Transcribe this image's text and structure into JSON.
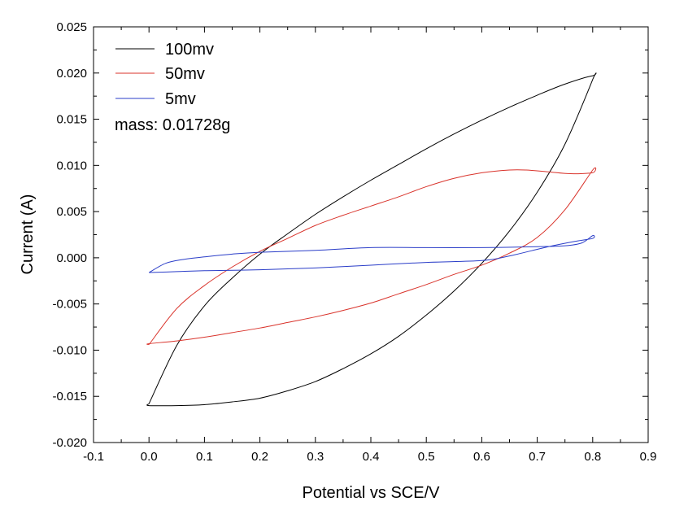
{
  "chart_data": {
    "type": "line",
    "xlabel": "Potential vs SCE/V",
    "ylabel": "Current (A)",
    "xlim": [
      -0.1,
      0.9
    ],
    "ylim": [
      -0.02,
      0.025
    ],
    "x_ticks": [
      -0.1,
      0.0,
      0.1,
      0.2,
      0.3,
      0.4,
      0.5,
      0.6,
      0.7,
      0.8,
      0.9
    ],
    "x_tick_labels": [
      "-0.1",
      "0.0",
      "0.1",
      "0.2",
      "0.3",
      "0.4",
      "0.5",
      "0.6",
      "0.7",
      "0.8",
      "0.9"
    ],
    "y_ticks": [
      -0.02,
      -0.015,
      -0.01,
      -0.005,
      0.0,
      0.005,
      0.01,
      0.015,
      0.02,
      0.025
    ],
    "y_tick_labels": [
      "-0.020",
      "-0.015",
      "-0.010",
      "-0.005",
      "0.000",
      "0.005",
      "0.010",
      "0.015",
      "0.020",
      "0.025"
    ],
    "grid": false,
    "legend_position": "top-left",
    "annotation": "mass: 0.01728g",
    "series": [
      {
        "name": "100mv",
        "color": "#000000",
        "x": [
          0.0,
          0.05,
          0.1,
          0.15,
          0.2,
          0.25,
          0.3,
          0.35,
          0.4,
          0.45,
          0.5,
          0.55,
          0.6,
          0.65,
          0.7,
          0.75,
          0.8,
          0.8,
          0.75,
          0.7,
          0.65,
          0.6,
          0.55,
          0.5,
          0.45,
          0.4,
          0.35,
          0.3,
          0.25,
          0.2,
          0.15,
          0.1,
          0.05,
          0.0,
          0.0
        ],
        "y": [
          -0.0158,
          -0.0095,
          -0.0052,
          -0.0022,
          0.0004,
          0.0026,
          0.0047,
          0.0066,
          0.0084,
          0.0101,
          0.0118,
          0.0134,
          0.0149,
          0.0163,
          0.0176,
          0.0188,
          0.0197,
          0.0193,
          0.0123,
          0.0071,
          0.0029,
          -0.0006,
          -0.0036,
          -0.0062,
          -0.0085,
          -0.0104,
          -0.012,
          -0.0134,
          -0.0144,
          -0.0152,
          -0.0156,
          -0.0159,
          -0.016,
          -0.016,
          -0.0158
        ]
      },
      {
        "name": "50mv",
        "color": "#d9332b",
        "x": [
          0.0,
          0.05,
          0.1,
          0.15,
          0.2,
          0.25,
          0.3,
          0.35,
          0.4,
          0.45,
          0.5,
          0.55,
          0.6,
          0.65,
          0.68,
          0.72,
          0.76,
          0.8,
          0.8,
          0.75,
          0.7,
          0.65,
          0.6,
          0.55,
          0.5,
          0.45,
          0.4,
          0.35,
          0.3,
          0.25,
          0.2,
          0.15,
          0.1,
          0.05,
          0.0,
          0.0
        ],
        "y": [
          -0.0094,
          -0.0055,
          -0.003,
          -0.001,
          0.0007,
          0.0021,
          0.0035,
          0.0046,
          0.0056,
          0.0066,
          0.0077,
          0.0086,
          0.0092,
          0.0095,
          0.0095,
          0.0093,
          0.0091,
          0.0092,
          0.0095,
          0.0052,
          0.0022,
          0.0005,
          -0.0008,
          -0.0018,
          -0.0029,
          -0.0039,
          -0.0049,
          -0.0057,
          -0.0064,
          -0.007,
          -0.0076,
          -0.0081,
          -0.0086,
          -0.009,
          -0.0093,
          -0.0094
        ]
      },
      {
        "name": "5mv",
        "color": "#2a3dc8",
        "x": [
          0.0,
          0.03,
          0.06,
          0.1,
          0.15,
          0.2,
          0.3,
          0.4,
          0.5,
          0.6,
          0.7,
          0.75,
          0.78,
          0.8,
          0.8,
          0.77,
          0.72,
          0.65,
          0.6,
          0.5,
          0.4,
          0.3,
          0.2,
          0.1,
          0.05,
          0.0
        ],
        "y": [
          -0.0016,
          -0.0006,
          -0.0002,
          0.0001,
          0.0004,
          0.0006,
          0.0008,
          0.0011,
          0.0011,
          0.0011,
          0.0012,
          0.0013,
          0.0016,
          0.0024,
          0.0021,
          0.0018,
          0.0012,
          0.0002,
          -0.0003,
          -0.0005,
          -0.0008,
          -0.0011,
          -0.0013,
          -0.0014,
          -0.0015,
          -0.0016
        ]
      }
    ]
  }
}
